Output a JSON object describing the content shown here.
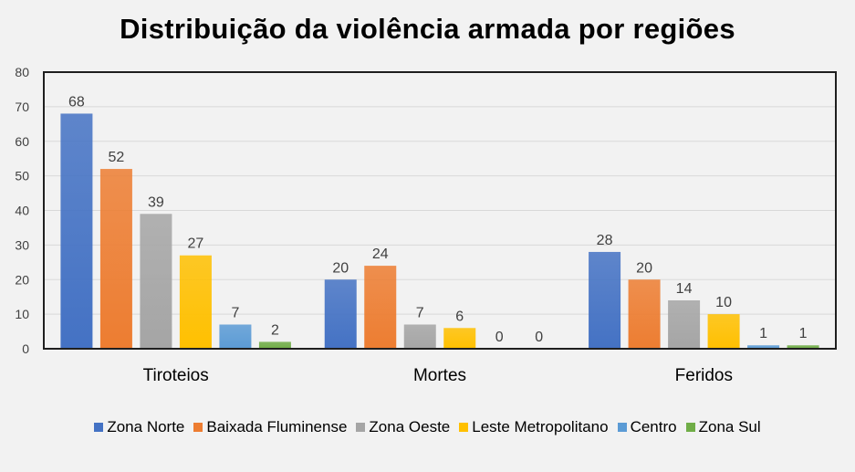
{
  "chart_data": {
    "type": "bar",
    "title": "Distribuição  da violência  armada por regiões",
    "categories": [
      "Tiroteios",
      "Mortes",
      "Feridos"
    ],
    "series": [
      {
        "name": "Zona Norte",
        "values": [
          68,
          20,
          28
        ],
        "color": "#4472c4"
      },
      {
        "name": "Baixada Fluminense",
        "values": [
          52,
          24,
          20
        ],
        "color": "#ed7d31"
      },
      {
        "name": "Zona Oeste",
        "values": [
          39,
          7,
          14
        ],
        "color": "#a5a5a5"
      },
      {
        "name": "Leste Metropolitano",
        "values": [
          27,
          6,
          10
        ],
        "color": "#ffc000"
      },
      {
        "name": "Centro",
        "values": [
          7,
          0,
          1
        ],
        "color": "#5b9bd5"
      },
      {
        "name": "Zona Sul",
        "values": [
          2,
          0,
          1
        ],
        "color": "#70ad47"
      }
    ],
    "yticks": [
      "0",
      "10",
      "20",
      "30",
      "40",
      "50",
      "60",
      "70",
      "80"
    ],
    "ylim": [
      0,
      80
    ],
    "grid": true,
    "legend_position": "bottom",
    "xlabel": "",
    "ylabel": ""
  }
}
